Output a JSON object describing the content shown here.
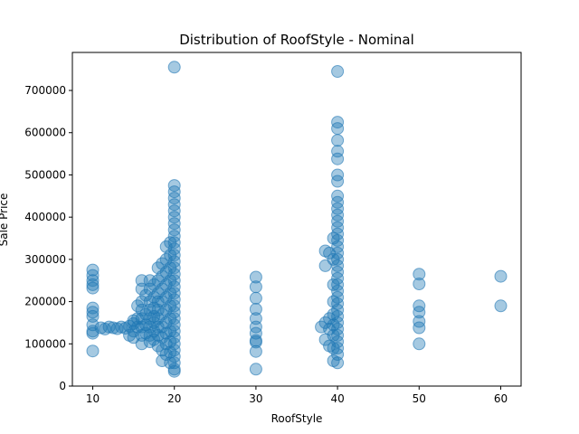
{
  "chart_data": {
    "type": "scatter",
    "title": "Distribution of RoofStyle - Nominal",
    "xlabel": "RoofStyle",
    "ylabel": "Sale Price",
    "xlim": [
      7.5,
      62.5
    ],
    "ylim": [
      0,
      790000
    ],
    "xticks": [
      "10",
      "20",
      "30",
      "40",
      "50",
      "60"
    ],
    "yticks": [
      "0",
      "100000",
      "200000",
      "300000",
      "400000",
      "500000",
      "600000",
      "700000"
    ],
    "grid": false,
    "legend": "none",
    "color": "#1f77b4",
    "series": [
      {
        "points": [
          [
            10,
            275000
          ],
          [
            10,
            262000
          ],
          [
            10,
            250000
          ],
          [
            10,
            240000
          ],
          [
            10,
            232000
          ],
          [
            10,
            185000
          ],
          [
            10,
            175000
          ],
          [
            10,
            165000
          ],
          [
            10,
            145000
          ],
          [
            10,
            130000
          ],
          [
            10,
            125000
          ],
          [
            10,
            83000
          ],
          [
            11,
            138000
          ],
          [
            11.5,
            135000
          ],
          [
            12,
            140000
          ],
          [
            12.5,
            138000
          ],
          [
            13,
            136000
          ],
          [
            13.5,
            140000
          ],
          [
            14,
            137000
          ],
          [
            14.5,
            142000
          ],
          [
            14.5,
            120000
          ],
          [
            15,
            155000
          ],
          [
            15,
            148000
          ],
          [
            15,
            130000
          ],
          [
            15,
            115000
          ],
          [
            15.5,
            190000
          ],
          [
            15.5,
            160000
          ],
          [
            15.5,
            140000
          ],
          [
            16,
            250000
          ],
          [
            16,
            230000
          ],
          [
            16,
            200000
          ],
          [
            16,
            180000
          ],
          [
            16,
            160000
          ],
          [
            16,
            140000
          ],
          [
            16,
            120000
          ],
          [
            16,
            100000
          ],
          [
            16.5,
            215000
          ],
          [
            16.5,
            170000
          ],
          [
            16.5,
            145000
          ],
          [
            16.5,
            125000
          ],
          [
            17,
            250000
          ],
          [
            17,
            230000
          ],
          [
            17,
            200000
          ],
          [
            17,
            180000
          ],
          [
            17,
            160000
          ],
          [
            17,
            140000
          ],
          [
            17,
            120000
          ],
          [
            17,
            105000
          ],
          [
            17.5,
            240000
          ],
          [
            17.5,
            210000
          ],
          [
            17.5,
            185000
          ],
          [
            17.5,
            165000
          ],
          [
            17.5,
            150000
          ],
          [
            17.5,
            130000
          ],
          [
            17.5,
            110000
          ],
          [
            18,
            280000
          ],
          [
            18,
            250000
          ],
          [
            18,
            220000
          ],
          [
            18,
            200000
          ],
          [
            18,
            180000
          ],
          [
            18,
            160000
          ],
          [
            18,
            140000
          ],
          [
            18,
            120000
          ],
          [
            18,
            95000
          ],
          [
            18.5,
            290000
          ],
          [
            18.5,
            260000
          ],
          [
            18.5,
            230000
          ],
          [
            18.5,
            200000
          ],
          [
            18.5,
            170000
          ],
          [
            18.5,
            140000
          ],
          [
            18.5,
            115000
          ],
          [
            18.5,
            85000
          ],
          [
            18.5,
            60000
          ],
          [
            19,
            330000
          ],
          [
            19,
            300000
          ],
          [
            19,
            270000
          ],
          [
            19,
            240000
          ],
          [
            19,
            210000
          ],
          [
            19,
            180000
          ],
          [
            19,
            150000
          ],
          [
            19,
            125000
          ],
          [
            19,
            100000
          ],
          [
            19,
            75000
          ],
          [
            19.5,
            340000
          ],
          [
            19.5,
            310000
          ],
          [
            19.5,
            280000
          ],
          [
            19.5,
            250000
          ],
          [
            19.5,
            220000
          ],
          [
            19.5,
            190000
          ],
          [
            19.5,
            160000
          ],
          [
            19.5,
            130000
          ],
          [
            19.5,
            105000
          ],
          [
            19.5,
            80000
          ],
          [
            19.5,
            55000
          ],
          [
            20,
            755000
          ],
          [
            20,
            475000
          ],
          [
            20,
            460000
          ],
          [
            20,
            445000
          ],
          [
            20,
            430000
          ],
          [
            20,
            415000
          ],
          [
            20,
            400000
          ],
          [
            20,
            385000
          ],
          [
            20,
            370000
          ],
          [
            20,
            355000
          ],
          [
            20,
            340000
          ],
          [
            20,
            325000
          ],
          [
            20,
            310000
          ],
          [
            20,
            295000
          ],
          [
            20,
            280000
          ],
          [
            20,
            265000
          ],
          [
            20,
            250000
          ],
          [
            20,
            235000
          ],
          [
            20,
            220000
          ],
          [
            20,
            205000
          ],
          [
            20,
            190000
          ],
          [
            20,
            175000
          ],
          [
            20,
            160000
          ],
          [
            20,
            145000
          ],
          [
            20,
            130000
          ],
          [
            20,
            115000
          ],
          [
            20,
            100000
          ],
          [
            20,
            85000
          ],
          [
            20,
            70000
          ],
          [
            20,
            55000
          ],
          [
            20,
            40000
          ],
          [
            20,
            35000
          ],
          [
            30,
            258000
          ],
          [
            30,
            235000
          ],
          [
            30,
            208000
          ],
          [
            30,
            182000
          ],
          [
            30,
            160000
          ],
          [
            30,
            140000
          ],
          [
            30,
            125000
          ],
          [
            30,
            108000
          ],
          [
            30,
            104000
          ],
          [
            30,
            82000
          ],
          [
            30,
            40000
          ],
          [
            38,
            140000
          ],
          [
            38.5,
            320000
          ],
          [
            38.5,
            285000
          ],
          [
            38.5,
            150000
          ],
          [
            38.5,
            110000
          ],
          [
            39,
            315000
          ],
          [
            39,
            160000
          ],
          [
            39,
            135000
          ],
          [
            39,
            95000
          ],
          [
            39.5,
            350000
          ],
          [
            39.5,
            300000
          ],
          [
            39.5,
            240000
          ],
          [
            39.5,
            200000
          ],
          [
            39.5,
            170000
          ],
          [
            39.5,
            145000
          ],
          [
            39.5,
            120000
          ],
          [
            39.5,
            90000
          ],
          [
            39.5,
            60000
          ],
          [
            40,
            745000
          ],
          [
            40,
            625000
          ],
          [
            40,
            610000
          ],
          [
            40,
            582000
          ],
          [
            40,
            556000
          ],
          [
            40,
            538000
          ],
          [
            40,
            500000
          ],
          [
            40,
            485000
          ],
          [
            40,
            450000
          ],
          [
            40,
            435000
          ],
          [
            40,
            420000
          ],
          [
            40,
            405000
          ],
          [
            40,
            390000
          ],
          [
            40,
            375000
          ],
          [
            40,
            360000
          ],
          [
            40,
            345000
          ],
          [
            40,
            330000
          ],
          [
            40,
            315000
          ],
          [
            40,
            300000
          ],
          [
            40,
            285000
          ],
          [
            40,
            270000
          ],
          [
            40,
            255000
          ],
          [
            40,
            240000
          ],
          [
            40,
            225000
          ],
          [
            40,
            210000
          ],
          [
            40,
            195000
          ],
          [
            40,
            180000
          ],
          [
            40,
            165000
          ],
          [
            40,
            150000
          ],
          [
            40,
            135000
          ],
          [
            40,
            120000
          ],
          [
            40,
            105000
          ],
          [
            40,
            90000
          ],
          [
            40,
            75000
          ],
          [
            40,
            55000
          ],
          [
            50,
            265000
          ],
          [
            50,
            242000
          ],
          [
            50,
            190000
          ],
          [
            50,
            175000
          ],
          [
            50,
            153000
          ],
          [
            50,
            138000
          ],
          [
            50,
            100000
          ],
          [
            60,
            260000
          ],
          [
            60,
            190000
          ]
        ]
      }
    ]
  }
}
